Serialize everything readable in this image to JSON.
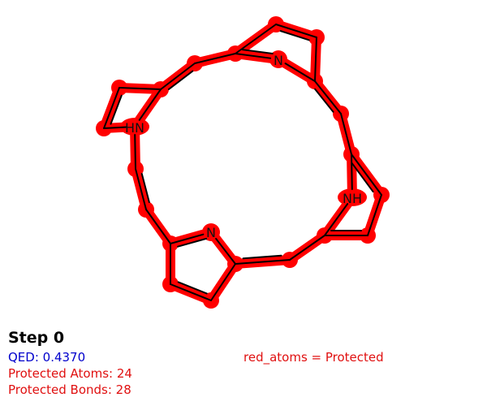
{
  "molecule": {
    "highlight_color": "#ff0000",
    "bond_color": "#000000",
    "atom_labels": [
      {
        "id": "n1",
        "text": "N"
      },
      {
        "id": "n2",
        "text": "HN"
      },
      {
        "id": "n3",
        "text": "NH"
      },
      {
        "id": "n4",
        "text": "N"
      }
    ]
  },
  "info": {
    "step": "Step 0",
    "qed": "QED: 0.4370",
    "protected_atoms": "Protected Atoms: 24",
    "protected_bonds": "Protected Bonds: 28",
    "legend": "red_atoms = Protected"
  }
}
